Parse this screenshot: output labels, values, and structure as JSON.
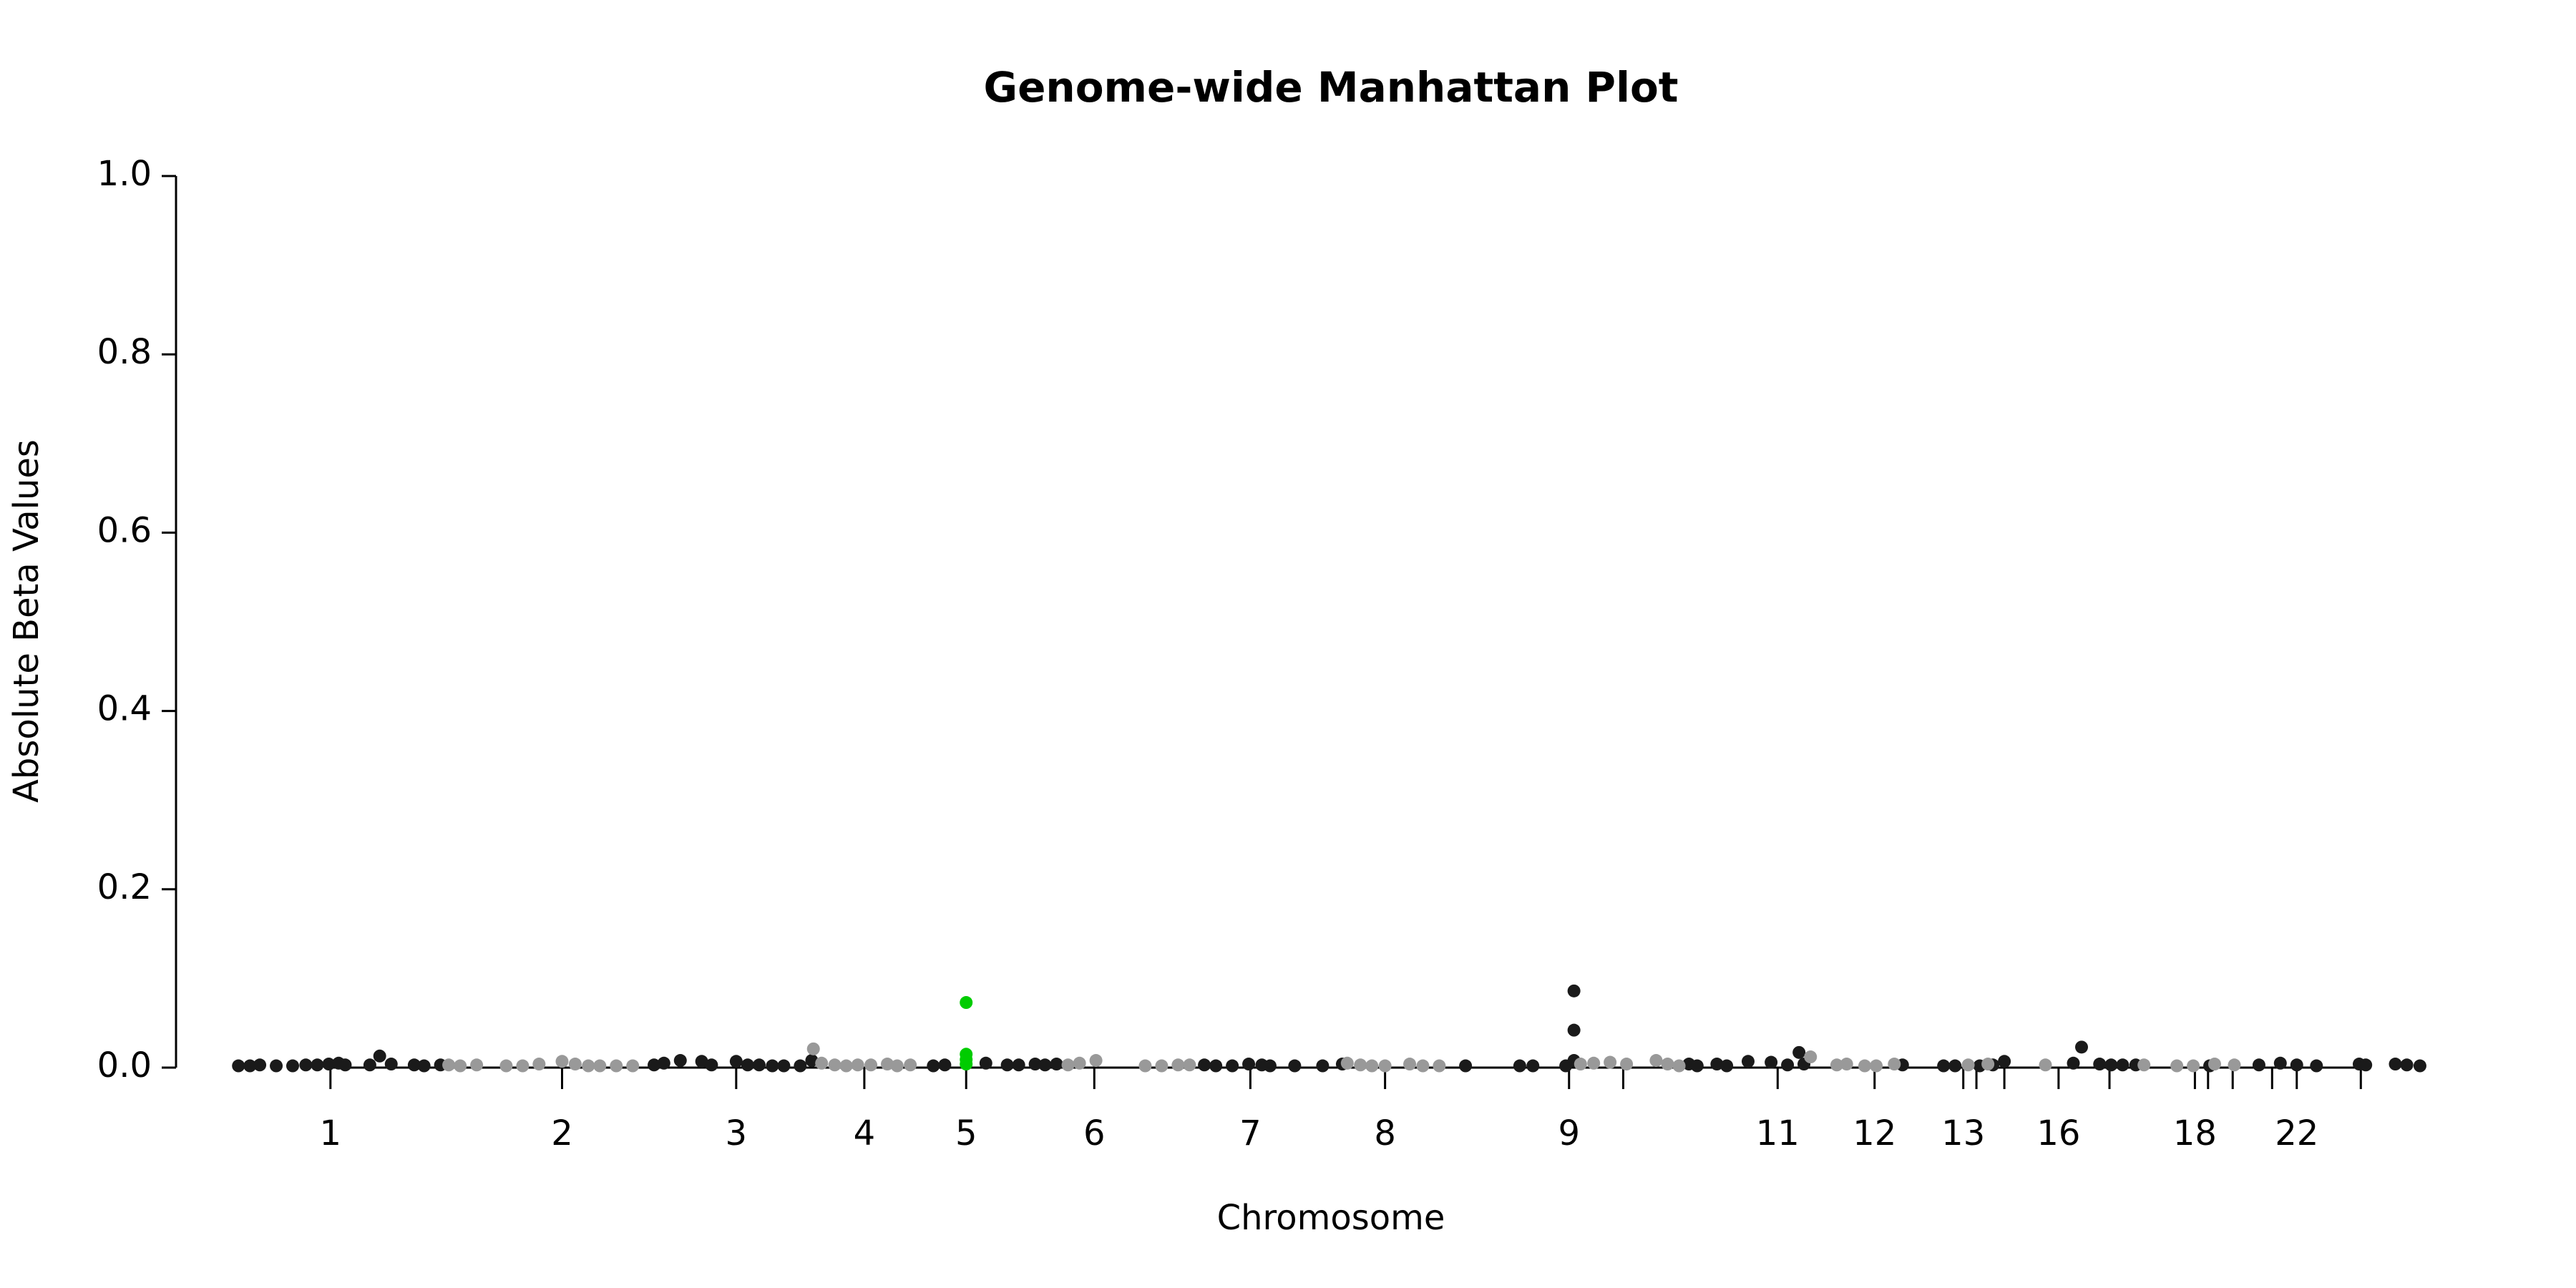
{
  "chart_data": {
    "type": "scatter",
    "title": "Genome-wide Manhattan Plot",
    "x_label": "Chromosome",
    "y_label": "Absolute Beta Values",
    "xlim": [
      107,
      1480
    ],
    "ylim": [
      0,
      1
    ],
    "yticks": [
      {
        "value": 0,
        "label": "0.0"
      },
      0.2,
      0.4,
      0.6,
      0.8,
      {
        "value": 1,
        "label": "1.0"
      }
    ],
    "xticks": [
      {
        "value": 201,
        "label": "1"
      },
      {
        "value": 342,
        "label": "2"
      },
      {
        "value": 448,
        "label": "3"
      },
      {
        "value": 526,
        "label": "4"
      },
      {
        "value": 588,
        "label": "5"
      },
      {
        "value": 666,
        "label": "6"
      },
      {
        "value": 761,
        "label": "7"
      },
      {
        "value": 843,
        "label": "8"
      },
      {
        "value": 955,
        "label": "9"
      },
      {
        "value": 988,
        "label": null
      },
      {
        "value": 1082,
        "label": "11"
      },
      {
        "value": 1141,
        "label": "12"
      },
      {
        "value": 1195,
        "label": "13"
      },
      {
        "value": 1203,
        "label": null
      },
      {
        "value": 1220,
        "label": null
      },
      {
        "value": 1253,
        "label": "16"
      },
      {
        "value": 1284,
        "label": null
      },
      {
        "value": 1336,
        "label": "18"
      },
      {
        "value": 1344,
        "label": null
      },
      {
        "value": 1359,
        "label": null
      },
      {
        "value": 1383,
        "label": null
      },
      {
        "value": 1398,
        "label": "22"
      },
      {
        "value": 1437,
        "label": null
      }
    ],
    "series": [
      {
        "color": "#1a1a1a",
        "x": [
          145,
          152,
          158,
          168,
          178,
          186,
          193,
          200,
          206,
          210,
          225,
          231,
          238,
          252,
          258,
          268,
          398,
          404,
          414,
          427,
          433,
          448,
          455,
          462,
          470,
          477,
          487,
          494,
          568,
          575,
          600,
          613,
          620,
          630,
          636,
          643,
          733,
          740,
          750,
          760,
          768,
          773,
          788,
          805,
          817,
          892,
          925,
          933,
          953,
          958,
          958,
          958,
          1028,
          1033,
          1045,
          1051,
          1064,
          1078,
          1088,
          1095,
          1098,
          1158,
          1183,
          1190,
          1205,
          1213,
          1220,
          1262,
          1267,
          1278,
          1285,
          1292,
          1300,
          1345,
          1375,
          1388,
          1398,
          1410,
          1436,
          1440,
          1458,
          1465,
          1473
        ],
        "y": [
          0.002,
          0.002,
          0.003,
          0.002,
          0.002,
          0.003,
          0.003,
          0.004,
          0.005,
          0.003,
          0.003,
          0.013,
          0.004,
          0.003,
          0.002,
          0.003,
          0.003,
          0.005,
          0.008,
          0.007,
          0.003,
          0.007,
          0.003,
          0.003,
          0.002,
          0.002,
          0.002,
          0.008,
          0.002,
          0.003,
          0.005,
          0.003,
          0.003,
          0.004,
          0.003,
          0.004,
          0.003,
          0.002,
          0.002,
          0.004,
          0.003,
          0.002,
          0.002,
          0.002,
          0.004,
          0.002,
          0.002,
          0.002,
          0.002,
          0.086,
          0.042,
          0.008,
          0.004,
          0.002,
          0.004,
          0.002,
          0.007,
          0.006,
          0.003,
          0.017,
          0.004,
          0.003,
          0.002,
          0.002,
          0.002,
          0.003,
          0.007,
          0.005,
          0.023,
          0.004,
          0.003,
          0.003,
          0.003,
          0.002,
          0.003,
          0.005,
          0.003,
          0.002,
          0.004,
          0.003,
          0.004,
          0.003,
          0.002
        ]
      },
      {
        "color": "#999999",
        "x": [
          273,
          280,
          290,
          308,
          318,
          328,
          342,
          350,
          358,
          365,
          375,
          385,
          495,
          500,
          508,
          515,
          522,
          530,
          540,
          546,
          554,
          650,
          657,
          667,
          697,
          707,
          717,
          724,
          820,
          828,
          835,
          843,
          858,
          866,
          876,
          962,
          970,
          980,
          990,
          1008,
          1015,
          1022,
          1102,
          1118,
          1124,
          1135,
          1142,
          1153,
          1198,
          1210,
          1245,
          1305,
          1325,
          1335,
          1348,
          1360
        ],
        "y": [
          0.003,
          0.002,
          0.003,
          0.002,
          0.002,
          0.004,
          0.007,
          0.004,
          0.002,
          0.002,
          0.002,
          0.002,
          0.021,
          0.005,
          0.003,
          0.002,
          0.003,
          0.003,
          0.004,
          0.002,
          0.003,
          0.003,
          0.005,
          0.008,
          0.002,
          0.002,
          0.003,
          0.003,
          0.005,
          0.003,
          0.002,
          0.002,
          0.004,
          0.002,
          0.002,
          0.004,
          0.005,
          0.006,
          0.004,
          0.008,
          0.004,
          0.002,
          0.012,
          0.003,
          0.004,
          0.002,
          0.002,
          0.004,
          0.003,
          0.004,
          0.003,
          0.003,
          0.002,
          0.002,
          0.004,
          0.003
        ]
      },
      {
        "color": "#00cc00",
        "x": [
          588,
          588,
          588,
          588
        ],
        "y": [
          0.073,
          0.015,
          0.009,
          0.004
        ]
      }
    ]
  }
}
